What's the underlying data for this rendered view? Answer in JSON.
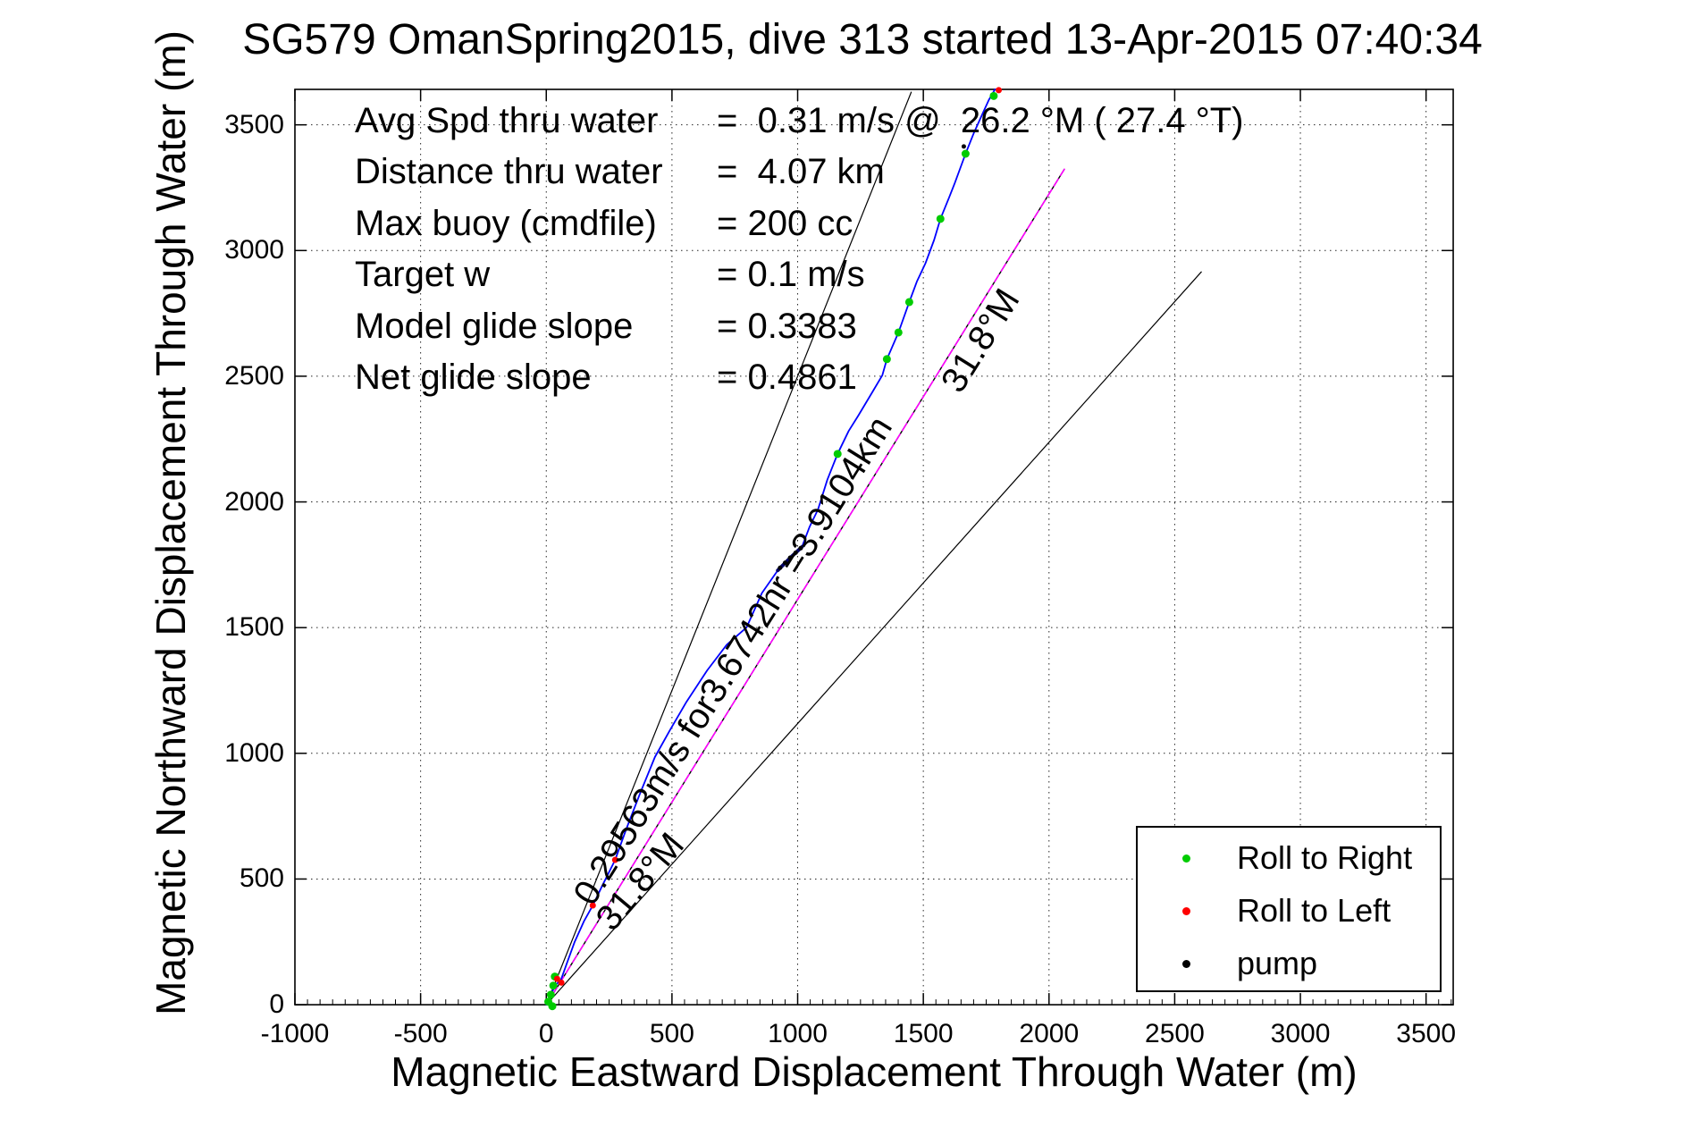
{
  "title": "SG579 OmanSpring2015, dive 313 started 13-Apr-2015 07:40:34",
  "stats": {
    "rows": [
      {
        "label": "Avg Spd thru water",
        "value": "=  0.31 m/s @  26.2 °M ( 27.4 °T)"
      },
      {
        "label": "Distance thru water",
        "value": "=  4.07 km"
      },
      {
        "label": "Max buoy (cmdfile)",
        "value": "= 200 cc"
      },
      {
        "label": "Target w",
        "value": "= 0.1 m/s"
      },
      {
        "label": "Model glide slope",
        "value": "= 0.3383"
      },
      {
        "label": "Net glide slope",
        "value": "= 0.4861"
      }
    ]
  },
  "legend": {
    "items": [
      {
        "label": "Roll to Right",
        "color": "#00cc00"
      },
      {
        "label": "Roll to Left",
        "color": "#ff0000"
      },
      {
        "label": "pump",
        "color": "#000000"
      }
    ]
  },
  "chart_data": {
    "type": "line",
    "xlabel": "Magnetic Eastward Displacement Through Water (m)",
    "ylabel": "Magnetic Northward Displacement Through Water (m)",
    "xlim": [
      -1000,
      3608
    ],
    "ylim": [
      0,
      3641
    ],
    "xticks": [
      -1000,
      -500,
      0,
      500,
      1000,
      1500,
      2000,
      2500,
      3000,
      3500
    ],
    "yticks": [
      0,
      500,
      1000,
      1500,
      2000,
      2500,
      3000,
      3500
    ],
    "grid": "dotted",
    "minor_tick_step_x": 50,
    "series": [
      {
        "name": "bearing-line-21.8M",
        "color": "#000000",
        "width": 1.2,
        "dash": null,
        "points": [
          [
            0,
            0
          ],
          [
            1452,
            3630
          ]
        ]
      },
      {
        "name": "bearing-line-31.8M-black",
        "color": "#000000",
        "width": 1.4,
        "dash": null,
        "points": [
          [
            0,
            0
          ],
          [
            2061,
            3323
          ]
        ]
      },
      {
        "name": "desired-track-31.8M-magenta",
        "color": "#ff00ff",
        "width": 1.6,
        "dash": "9 5",
        "points": [
          [
            0,
            0
          ],
          [
            2061,
            3323
          ]
        ]
      },
      {
        "name": "bearing-line-41.8M",
        "color": "#000000",
        "width": 1.2,
        "dash": null,
        "points": [
          [
            0,
            0
          ],
          [
            2606,
            2915
          ]
        ]
      },
      {
        "name": "track-through-water",
        "color": "#0000ff",
        "width": 1.8,
        "dash": null,
        "points": [
          [
            0,
            0
          ],
          [
            18,
            42
          ],
          [
            40,
            82
          ],
          [
            57,
            95
          ],
          [
            82,
            165
          ],
          [
            112,
            248
          ],
          [
            150,
            332
          ],
          [
            185,
            395
          ],
          [
            222,
            472
          ],
          [
            274,
            576
          ],
          [
            318,
            698
          ],
          [
            372,
            838
          ],
          [
            432,
            985
          ],
          [
            492,
            1092
          ],
          [
            558,
            1205
          ],
          [
            640,
            1330
          ],
          [
            718,
            1432
          ],
          [
            797,
            1501
          ],
          [
            858,
            1638
          ],
          [
            921,
            1728
          ],
          [
            967,
            1774
          ],
          [
            1017,
            1821
          ],
          [
            1048,
            1902
          ],
          [
            1081,
            1970
          ],
          [
            1118,
            2088
          ],
          [
            1159,
            2191
          ],
          [
            1203,
            2282
          ],
          [
            1241,
            2343
          ],
          [
            1298,
            2438
          ],
          [
            1337,
            2504
          ],
          [
            1355,
            2568
          ],
          [
            1401,
            2674
          ],
          [
            1444,
            2795
          ],
          [
            1475,
            2878
          ],
          [
            1508,
            2948
          ],
          [
            1543,
            3042
          ],
          [
            1568,
            3126
          ],
          [
            1603,
            3212
          ],
          [
            1625,
            3268
          ],
          [
            1668,
            3385
          ],
          [
            1701,
            3468
          ],
          [
            1739,
            3552
          ],
          [
            1760,
            3598
          ],
          [
            1785,
            3641
          ]
        ]
      },
      {
        "name": "pump-segment",
        "color": "#000066",
        "width": 4,
        "dash": null,
        "points": [
          [
            921,
            1728
          ],
          [
            967,
            1774
          ],
          [
            1017,
            1821
          ]
        ]
      }
    ],
    "markers": {
      "roll_right": {
        "color": "#00cc00",
        "size": 4.5,
        "points": [
          [
            8,
            12
          ],
          [
            18,
            40
          ],
          [
            28,
            76
          ],
          [
            34,
            112
          ],
          [
            24,
            -6
          ],
          [
            1159,
            2191
          ],
          [
            1355,
            2568
          ],
          [
            1401,
            2674
          ],
          [
            1444,
            2795
          ],
          [
            1568,
            3126
          ],
          [
            1668,
            3385
          ],
          [
            1780,
            3615
          ]
        ]
      },
      "roll_left": {
        "color": "#ff0000",
        "size": 3.5,
        "points": [
          [
            43,
            103
          ],
          [
            60,
            88
          ],
          [
            185,
            395
          ],
          [
            274,
            576
          ],
          [
            1800,
            3638
          ]
        ]
      },
      "pump": {
        "color": "#000000",
        "size": 2.5,
        "points": [
          [
            930,
            1738
          ],
          [
            950,
            1758
          ],
          [
            970,
            1778
          ],
          [
            992,
            1798
          ],
          [
            1012,
            1816
          ],
          [
            1661,
            3414
          ]
        ]
      }
    },
    "line_labels": [
      {
        "text": "0.29563m/s for3.6742hr =3.9104km",
        "x": 782,
        "y": 1344,
        "rotation": -58
      },
      {
        "text": "31.8°M",
        "x": 409,
        "y": 459,
        "rotation": -50
      },
      {
        "text": "31.8°M",
        "x": 1767,
        "y": 2617,
        "rotation": -58
      }
    ]
  }
}
